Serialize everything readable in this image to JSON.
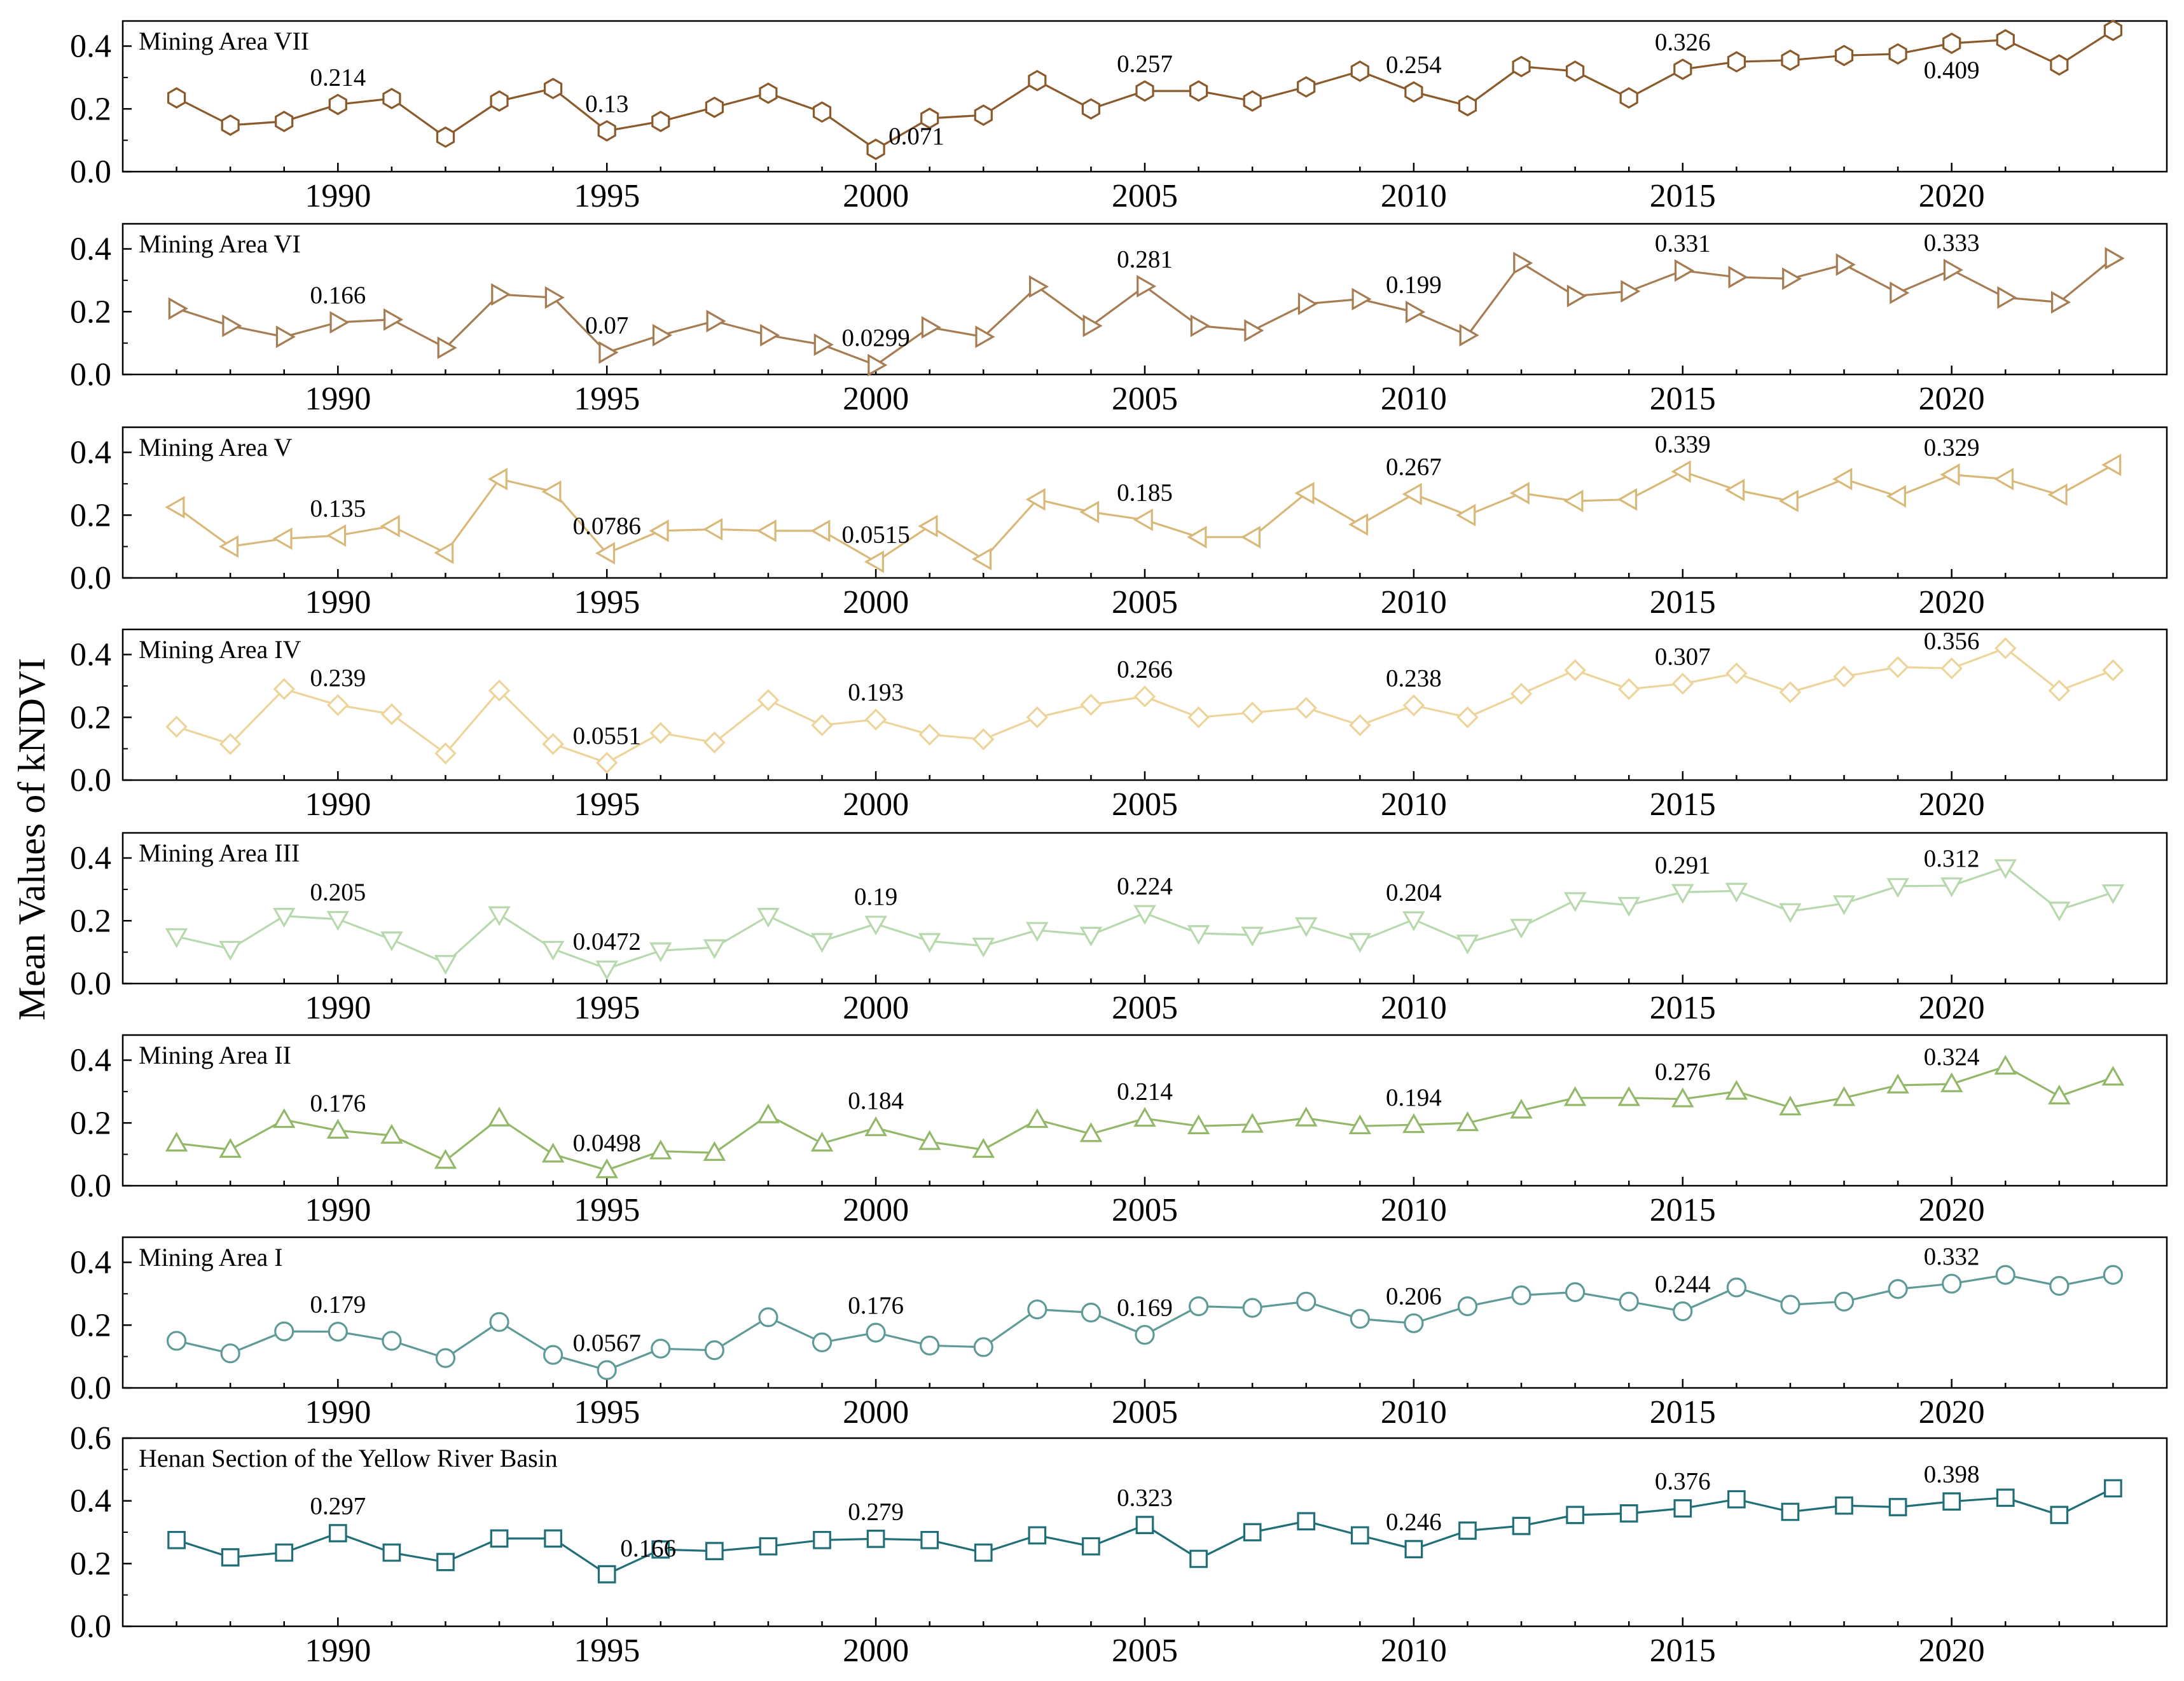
{
  "chart_data": {
    "type": "line",
    "ylabel": "Mean Values of kNDVI",
    "x": [
      1987,
      1988,
      1989,
      1990,
      1991,
      1992,
      1993,
      1994,
      1995,
      1996,
      1997,
      1998,
      1999,
      2000,
      2001,
      2002,
      2003,
      2004,
      2005,
      2006,
      2007,
      2008,
      2009,
      2010,
      2011,
      2012,
      2013,
      2014,
      2015,
      2016,
      2017,
      2018,
      2019,
      2020,
      2021,
      2022,
      2023
    ],
    "xlim": [
      1986,
      2024
    ],
    "x_ticks": [
      1990,
      1995,
      2000,
      2005,
      2010,
      2015,
      2020
    ],
    "panels": [
      {
        "name": "Mining Area VII",
        "color": "#8B5A2B",
        "marker": "hexagon",
        "ylim": [
          0,
          0.48
        ],
        "y_ticks": [
          "0.0",
          "0.2",
          "0.4"
        ],
        "values": [
          0.235,
          0.148,
          0.16,
          0.214,
          0.233,
          0.11,
          0.225,
          0.265,
          0.13,
          0.16,
          0.205,
          0.25,
          0.19,
          0.071,
          0.17,
          0.18,
          0.29,
          0.2,
          0.257,
          0.257,
          0.225,
          0.27,
          0.32,
          0.254,
          0.21,
          0.335,
          0.32,
          0.235,
          0.326,
          0.35,
          0.355,
          0.37,
          0.375,
          0.409,
          0.42,
          0.34,
          0.45
        ],
        "annotations": [
          {
            "year": 1990,
            "text": "0.214",
            "pos": "above"
          },
          {
            "year": 1995,
            "text": "0.13",
            "pos": "above"
          },
          {
            "year": 2000,
            "text": "0.071",
            "pos": "right"
          },
          {
            "year": 2005,
            "text": "0.257",
            "pos": "above"
          },
          {
            "year": 2010,
            "text": "0.254",
            "pos": "above"
          },
          {
            "year": 2015,
            "text": "0.326",
            "pos": "above"
          },
          {
            "year": 2020,
            "text": "0.409",
            "pos": "below"
          }
        ]
      },
      {
        "name": "Mining Area VI",
        "color": "#A67C52",
        "marker": "triangle-right",
        "ylim": [
          0,
          0.48
        ],
        "y_ticks": [
          "0.0",
          "0.2",
          "0.4"
        ],
        "values": [
          0.21,
          0.155,
          0.12,
          0.166,
          0.175,
          0.085,
          0.255,
          0.245,
          0.07,
          0.125,
          0.17,
          0.125,
          0.095,
          0.0299,
          0.15,
          0.12,
          0.28,
          0.155,
          0.281,
          0.155,
          0.14,
          0.225,
          0.24,
          0.199,
          0.125,
          0.355,
          0.25,
          0.265,
          0.331,
          0.31,
          0.305,
          0.35,
          0.26,
          0.333,
          0.245,
          0.23,
          0.37
        ],
        "annotations": [
          {
            "year": 1990,
            "text": "0.166",
            "pos": "above"
          },
          {
            "year": 1995,
            "text": "0.07",
            "pos": "above"
          },
          {
            "year": 2000,
            "text": "0.0299",
            "pos": "above"
          },
          {
            "year": 2005,
            "text": "0.281",
            "pos": "above"
          },
          {
            "year": 2010,
            "text": "0.199",
            "pos": "above"
          },
          {
            "year": 2015,
            "text": "0.331",
            "pos": "above"
          },
          {
            "year": 2020,
            "text": "0.333",
            "pos": "above"
          }
        ]
      },
      {
        "name": "Mining Area V",
        "color": "#D9B97A",
        "marker": "triangle-left",
        "ylim": [
          0,
          0.48
        ],
        "y_ticks": [
          "0.0",
          "0.2",
          "0.4"
        ],
        "values": [
          0.225,
          0.1,
          0.125,
          0.135,
          0.165,
          0.08,
          0.315,
          0.275,
          0.0786,
          0.15,
          0.155,
          0.15,
          0.15,
          0.0515,
          0.165,
          0.06,
          0.25,
          0.21,
          0.185,
          0.13,
          0.13,
          0.27,
          0.17,
          0.267,
          0.2,
          0.27,
          0.245,
          0.25,
          0.339,
          0.28,
          0.245,
          0.315,
          0.26,
          0.329,
          0.315,
          0.265,
          0.36
        ],
        "annotations": [
          {
            "year": 1990,
            "text": "0.135",
            "pos": "above"
          },
          {
            "year": 1995,
            "text": "0.0786",
            "pos": "above"
          },
          {
            "year": 2000,
            "text": "0.0515",
            "pos": "above"
          },
          {
            "year": 2005,
            "text": "0.185",
            "pos": "above"
          },
          {
            "year": 2010,
            "text": "0.267",
            "pos": "above"
          },
          {
            "year": 2015,
            "text": "0.339",
            "pos": "above"
          },
          {
            "year": 2020,
            "text": "0.329",
            "pos": "above"
          }
        ]
      },
      {
        "name": "Mining Area IV",
        "color": "#EDD49A",
        "marker": "diamond",
        "ylim": [
          0,
          0.48
        ],
        "y_ticks": [
          "0.0",
          "0.2",
          "0.4"
        ],
        "values": [
          0.17,
          0.115,
          0.29,
          0.239,
          0.21,
          0.085,
          0.285,
          0.115,
          0.0551,
          0.15,
          0.12,
          0.255,
          0.175,
          0.193,
          0.145,
          0.13,
          0.2,
          0.24,
          0.266,
          0.2,
          0.215,
          0.23,
          0.175,
          0.238,
          0.2,
          0.275,
          0.35,
          0.29,
          0.307,
          0.34,
          0.28,
          0.33,
          0.36,
          0.356,
          0.42,
          0.285,
          0.35
        ],
        "annotations": [
          {
            "year": 1990,
            "text": "0.239",
            "pos": "above"
          },
          {
            "year": 1995,
            "text": "0.0551",
            "pos": "above"
          },
          {
            "year": 2000,
            "text": "0.193",
            "pos": "above"
          },
          {
            "year": 2005,
            "text": "0.266",
            "pos": "above"
          },
          {
            "year": 2010,
            "text": "0.238",
            "pos": "above"
          },
          {
            "year": 2015,
            "text": "0.307",
            "pos": "above"
          },
          {
            "year": 2020,
            "text": "0.356",
            "pos": "above"
          }
        ]
      },
      {
        "name": "Mining Area III",
        "color": "#B8D8AE",
        "marker": "triangle-down",
        "ylim": [
          0,
          0.48
        ],
        "y_ticks": [
          "0.0",
          "0.2",
          "0.4"
        ],
        "values": [
          0.15,
          0.11,
          0.215,
          0.205,
          0.14,
          0.065,
          0.22,
          0.11,
          0.0472,
          0.105,
          0.115,
          0.215,
          0.135,
          0.19,
          0.135,
          0.12,
          0.17,
          0.155,
          0.224,
          0.16,
          0.155,
          0.185,
          0.135,
          0.204,
          0.13,
          0.18,
          0.265,
          0.25,
          0.291,
          0.295,
          0.23,
          0.255,
          0.31,
          0.312,
          0.37,
          0.235,
          0.29
        ],
        "annotations": [
          {
            "year": 1990,
            "text": "0.205",
            "pos": "above"
          },
          {
            "year": 1995,
            "text": "0.0472",
            "pos": "above"
          },
          {
            "year": 2000,
            "text": "0.19",
            "pos": "above"
          },
          {
            "year": 2005,
            "text": "0.224",
            "pos": "above"
          },
          {
            "year": 2010,
            "text": "0.204",
            "pos": "above"
          },
          {
            "year": 2015,
            "text": "0.291",
            "pos": "above"
          },
          {
            "year": 2020,
            "text": "0.312",
            "pos": "above"
          }
        ]
      },
      {
        "name": "Mining Area II",
        "color": "#93B86A",
        "marker": "triangle-up",
        "ylim": [
          0,
          0.48
        ],
        "y_ticks": [
          "0.0",
          "0.2",
          "0.4"
        ],
        "values": [
          0.135,
          0.115,
          0.21,
          0.176,
          0.16,
          0.08,
          0.215,
          0.1,
          0.0498,
          0.11,
          0.105,
          0.225,
          0.135,
          0.184,
          0.14,
          0.115,
          0.21,
          0.165,
          0.214,
          0.19,
          0.195,
          0.215,
          0.19,
          0.194,
          0.2,
          0.24,
          0.28,
          0.28,
          0.276,
          0.3,
          0.25,
          0.28,
          0.32,
          0.324,
          0.38,
          0.285,
          0.345
        ],
        "annotations": [
          {
            "year": 1990,
            "text": "0.176",
            "pos": "above"
          },
          {
            "year": 1995,
            "text": "0.0498",
            "pos": "above"
          },
          {
            "year": 2000,
            "text": "0.184",
            "pos": "above"
          },
          {
            "year": 2005,
            "text": "0.214",
            "pos": "above"
          },
          {
            "year": 2010,
            "text": "0.194",
            "pos": "above"
          },
          {
            "year": 2015,
            "text": "0.276",
            "pos": "above"
          },
          {
            "year": 2020,
            "text": "0.324",
            "pos": "above"
          }
        ]
      },
      {
        "name": "Mining Area I",
        "color": "#5E9B96",
        "marker": "circle",
        "ylim": [
          0,
          0.48
        ],
        "y_ticks": [
          "0.0",
          "0.2",
          "0.4"
        ],
        "values": [
          0.15,
          0.11,
          0.18,
          0.179,
          0.15,
          0.095,
          0.21,
          0.105,
          0.0567,
          0.125,
          0.12,
          0.225,
          0.145,
          0.176,
          0.135,
          0.13,
          0.25,
          0.24,
          0.169,
          0.26,
          0.255,
          0.275,
          0.22,
          0.206,
          0.26,
          0.295,
          0.305,
          0.275,
          0.244,
          0.32,
          0.265,
          0.275,
          0.315,
          0.332,
          0.36,
          0.325,
          0.36
        ],
        "annotations": [
          {
            "year": 1990,
            "text": "0.179",
            "pos": "above"
          },
          {
            "year": 1995,
            "text": "0.0567",
            "pos": "above"
          },
          {
            "year": 2000,
            "text": "0.176",
            "pos": "above"
          },
          {
            "year": 2005,
            "text": "0.169",
            "pos": "above"
          },
          {
            "year": 2010,
            "text": "0.206",
            "pos": "above"
          },
          {
            "year": 2015,
            "text": "0.244",
            "pos": "above"
          },
          {
            "year": 2020,
            "text": "0.332",
            "pos": "above"
          }
        ]
      },
      {
        "name": "Henan Section of the Yellow River Basin",
        "color": "#1F6E78",
        "marker": "square",
        "ylim": [
          0,
          0.6
        ],
        "y_ticks": [
          "0.0",
          "0.2",
          "0.4",
          "0.6"
        ],
        "values": [
          0.275,
          0.22,
          0.235,
          0.297,
          0.235,
          0.205,
          0.28,
          0.28,
          0.166,
          0.245,
          0.24,
          0.255,
          0.275,
          0.279,
          0.275,
          0.235,
          0.29,
          0.255,
          0.323,
          0.215,
          0.3,
          0.335,
          0.29,
          0.246,
          0.305,
          0.32,
          0.355,
          0.36,
          0.376,
          0.405,
          0.365,
          0.385,
          0.38,
          0.398,
          0.41,
          0.355,
          0.44
        ],
        "annotations": [
          {
            "year": 1990,
            "text": "0.297",
            "pos": "above"
          },
          {
            "year": 1995,
            "text": "0.166",
            "pos": "above-right"
          },
          {
            "year": 2000,
            "text": "0.279",
            "pos": "above"
          },
          {
            "year": 2005,
            "text": "0.323",
            "pos": "above"
          },
          {
            "year": 2010,
            "text": "0.246",
            "pos": "above"
          },
          {
            "year": 2015,
            "text": "0.376",
            "pos": "above"
          },
          {
            "year": 2020,
            "text": "0.398",
            "pos": "above"
          }
        ]
      }
    ]
  }
}
